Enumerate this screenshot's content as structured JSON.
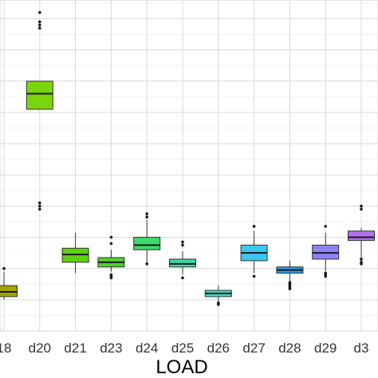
{
  "chart_data": {
    "type": "box",
    "xlabel": "LOAD",
    "ylabel": "",
    "grid": true,
    "legend": "none",
    "categories": [
      "18",
      "d20",
      "d21",
      "d23",
      "d24",
      "d25",
      "d26",
      "d27",
      "d28",
      "d29",
      "d3"
    ],
    "ylim": [
      0,
      10.6
    ],
    "series": [
      {
        "category": "18",
        "color": "#a3a500",
        "whisker_low": 1.0,
        "q1": 1.1,
        "median": 1.25,
        "q3": 1.45,
        "whisker_high": 1.9,
        "outliers": [
          2.0
        ]
      },
      {
        "category": "d20",
        "color": "#7cd40a",
        "whisker_low": 7.1,
        "q1": 7.1,
        "median": 7.6,
        "q3": 8.0,
        "whisker_high": 8.0,
        "outliers": [
          3.9,
          4.0,
          4.1,
          9.7,
          9.8,
          9.9,
          10.2
        ]
      },
      {
        "category": "d21",
        "color": "#5ed10f",
        "whisker_low": 1.85,
        "q1": 2.2,
        "median": 2.45,
        "q3": 2.65,
        "whisker_high": 3.15,
        "outliers": []
      },
      {
        "category": "d23",
        "color": "#4cd22a",
        "whisker_low": 1.9,
        "q1": 2.05,
        "median": 2.2,
        "q3": 2.35,
        "whisker_high": 2.6,
        "outliers": [
          1.7,
          1.75,
          1.8,
          2.8,
          3.0
        ]
      },
      {
        "category": "d24",
        "color": "#40d96a",
        "whisker_low": 2.2,
        "q1": 2.6,
        "median": 2.75,
        "q3": 3.0,
        "whisker_high": 3.55,
        "outliers": [
          2.15,
          3.65,
          3.75
        ]
      },
      {
        "category": "d25",
        "color": "#3bd6a8",
        "whisker_low": 1.8,
        "q1": 2.05,
        "median": 2.15,
        "q3": 2.3,
        "whisker_high": 2.55,
        "outliers": [
          1.7,
          2.75,
          2.85
        ]
      },
      {
        "category": "d26",
        "color": "#3ddccb",
        "whisker_low": 0.95,
        "q1": 1.1,
        "median": 1.2,
        "q3": 1.3,
        "whisker_high": 1.45,
        "outliers": [
          0.85,
          0.9
        ]
      },
      {
        "category": "d27",
        "color": "#3cc8ee",
        "whisker_low": 1.85,
        "q1": 2.25,
        "median": 2.5,
        "q3": 2.75,
        "whisker_high": 3.2,
        "outliers": [
          1.75,
          3.35
        ]
      },
      {
        "category": "d28",
        "color": "#2a9cf0",
        "whisker_low": 1.45,
        "q1": 1.85,
        "median": 1.95,
        "q3": 2.05,
        "whisker_high": 2.25,
        "outliers": [
          1.35,
          1.4,
          1.45,
          1.5,
          1.55
        ]
      },
      {
        "category": "d29",
        "color": "#8d82f5",
        "whisker_low": 1.9,
        "q1": 2.3,
        "median": 2.5,
        "q3": 2.75,
        "whisker_high": 3.15,
        "outliers": [
          1.75,
          1.8,
          1.85,
          3.35
        ]
      },
      {
        "category": "d3",
        "color": "#b66ff0",
        "whisker_low": 2.2,
        "q1": 2.9,
        "median": 3.0,
        "q3": 3.2,
        "whisker_high": 3.3,
        "outliers": [
          2.15,
          2.2,
          2.3,
          3.9,
          4.0
        ]
      }
    ]
  }
}
